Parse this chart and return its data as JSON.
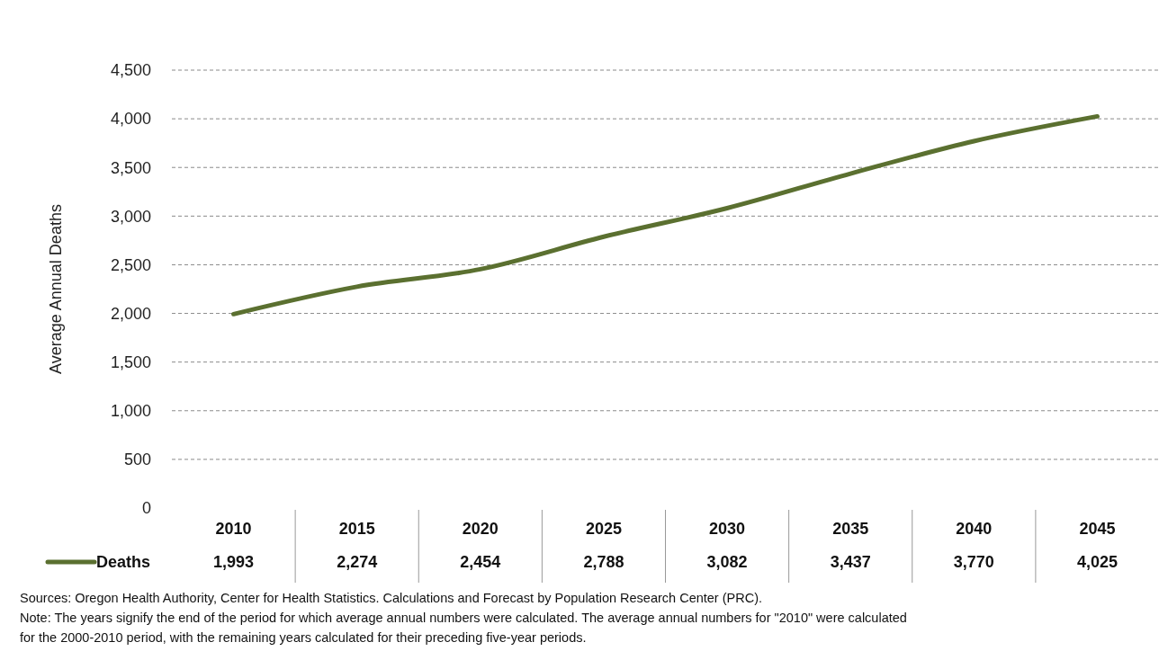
{
  "chart_data": {
    "type": "line",
    "ylabel": "Average Annual Deaths",
    "categories": [
      "2010",
      "2015",
      "2020",
      "2025",
      "2030",
      "2035",
      "2040",
      "2045"
    ],
    "series": [
      {
        "name": "Deaths",
        "color": "#5b7030",
        "values": [
          1993,
          2274,
          2454,
          2788,
          3082,
          3437,
          3770,
          4025
        ],
        "value_labels": [
          "1,993",
          "2,274",
          "2,454",
          "2,788",
          "3,082",
          "3,437",
          "3,770",
          "4,025"
        ]
      }
    ],
    "ylim": [
      0,
      4500
    ],
    "yticks": [
      0,
      {
        "value": 500,
        "label": "500"
      },
      {
        "value": 1000,
        "label": "1,000"
      },
      {
        "value": 1500,
        "label": "1,500"
      },
      {
        "value": 2000,
        "label": "2,000"
      },
      {
        "value": 2500,
        "label": "2,500"
      },
      {
        "value": 3000,
        "label": "3,000"
      },
      {
        "value": 3500,
        "label": "3,500"
      },
      {
        "value": 4000,
        "label": "4,000"
      },
      {
        "value": 4500,
        "label": "4,500"
      }
    ],
    "grid": "y",
    "legend": "bottom",
    "marker": "none",
    "line_style": "solid",
    "annotations": [
      "Sources: Oregon Health Authority, Center for Health Statistics. Calculations and Forecast by Population Research Center (PRC).",
      "Note: The years signify the end of the period for which average annual numbers were calculated. The average annual numbers for \"2010\" were calculated for the 2000-2010 period, with the remaining years calculated for their preceding five-year periods."
    ]
  }
}
